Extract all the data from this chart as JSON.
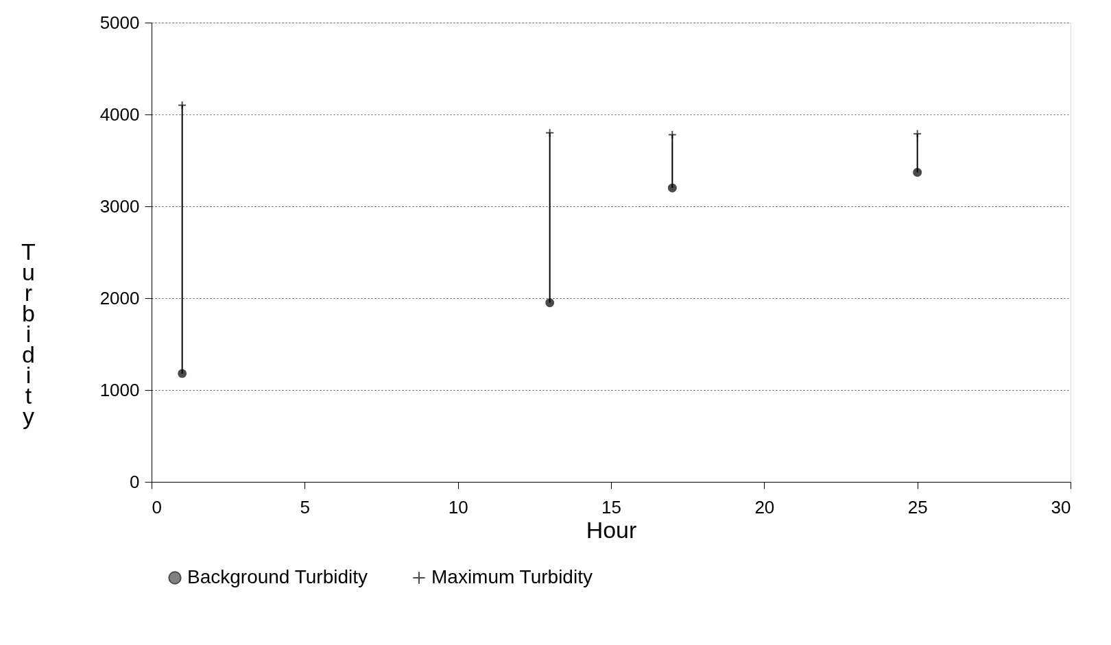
{
  "chart_data": {
    "type": "scatter",
    "xlabel": "Hour",
    "ylabel": "Turbidity",
    "x": [
      1,
      13,
      17,
      25
    ],
    "series": [
      {
        "name": "Background Turbidity",
        "color": "#000000",
        "marker": "circle",
        "values": [
          1180,
          1950,
          3200,
          3370
        ]
      },
      {
        "name": "Maximum Turbidity",
        "color": "#000000",
        "marker": "cross",
        "values": [
          4100,
          3800,
          3780,
          3790
        ],
        "errors": [
          [
            1180,
            4100
          ],
          [
            1950,
            3800
          ],
          [
            3200,
            3780
          ],
          [
            3370,
            3790
          ]
        ]
      }
    ],
    "xlim": [
      0,
      30
    ],
    "xticks": [
      0,
      5,
      10,
      15,
      20,
      25,
      30
    ],
    "ylim": [
      0,
      5000
    ],
    "yticks": [
      0,
      1000,
      2000,
      3000,
      4000,
      5000
    ],
    "grid": "y",
    "legend": "bottom"
  }
}
